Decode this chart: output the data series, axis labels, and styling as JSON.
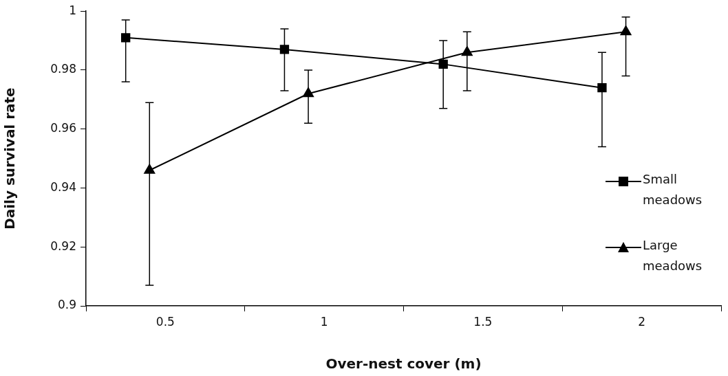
{
  "chart_data": {
    "type": "line",
    "xlabel": "Over-nest cover (m)",
    "ylabel": "Daily survival rate",
    "xlim": [
      0.25,
      2.25
    ],
    "xticks": [
      {
        "value": 0.25,
        "label": null
      },
      0.5,
      {
        "value": 0.75,
        "label": null
      },
      1,
      {
        "value": 1.25,
        "label": null
      },
      1.5,
      {
        "value": 1.75,
        "label": null
      },
      2,
      {
        "value": 2.25,
        "label": null
      }
    ],
    "ylim": [
      0.9,
      1
    ],
    "yticks": [
      0.9,
      0.92,
      0.94,
      0.96,
      0.98,
      1
    ],
    "grid": false,
    "legend": "right",
    "line_style": "solid",
    "series": [
      {
        "name": "Small meadows",
        "color": "#000000",
        "marker": "square",
        "x": [
          0.375,
          0.875,
          1.375,
          1.875
        ],
        "values": [
          0.991,
          0.987,
          0.982,
          0.974
        ],
        "errors": [
          [
            0.976,
            0.997
          ],
          [
            0.973,
            0.994
          ],
          [
            0.967,
            0.99
          ],
          [
            0.954,
            0.986
          ]
        ]
      },
      {
        "name": "Large meadows",
        "color": "#000000",
        "marker": "triangle",
        "x": [
          0.45,
          0.95,
          1.45,
          1.95
        ],
        "values": [
          0.946,
          0.972,
          0.986,
          0.993
        ],
        "errors": [
          [
            0.907,
            0.969
          ],
          [
            0.962,
            0.98
          ],
          [
            0.973,
            0.993
          ],
          [
            0.978,
            0.998
          ]
        ]
      }
    ]
  }
}
